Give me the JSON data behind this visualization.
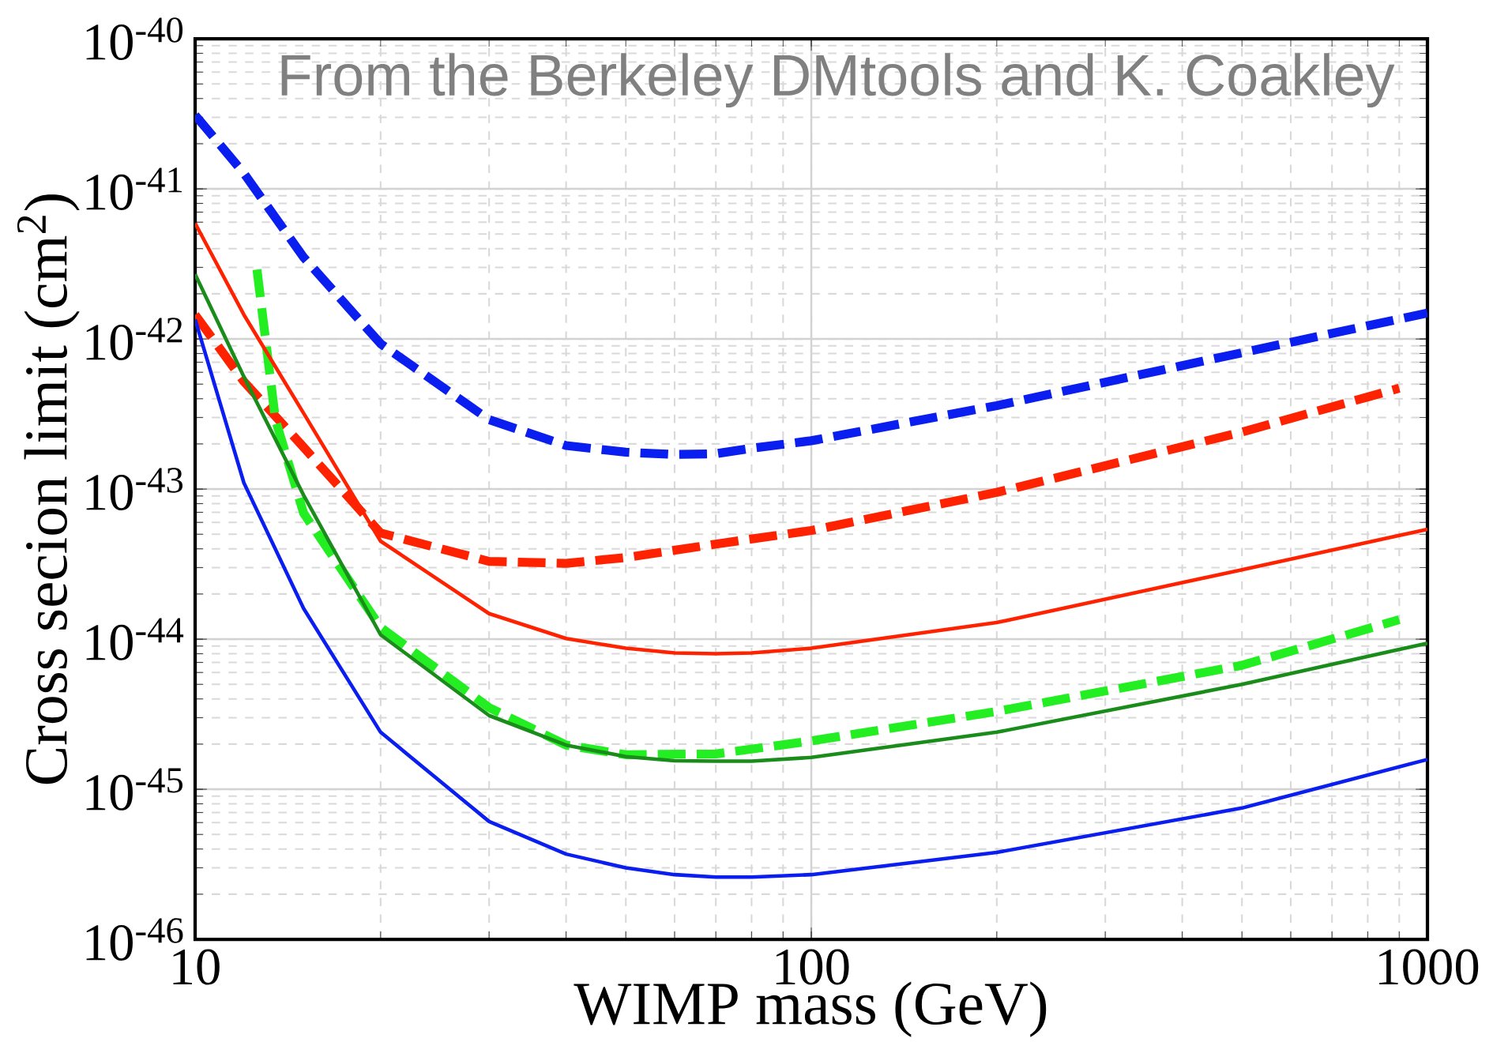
{
  "chart_data": {
    "type": "line",
    "xlabel": "WIMP mass (GeV)",
    "ylabel": "Cross secion limit (cm$^{2}$)",
    "annotations": [
      "From the Berkeley DMtools and K. Coakley"
    ],
    "log": "xy",
    "grid": true,
    "marker": "none",
    "xlim": [
      10,
      1000
    ],
    "xticks": [
      10,
      100,
      1000
    ],
    "ylim": [
      1e-46,
      1e-40
    ],
    "yticks": [
      {
        "value": 1e-46,
        "label": "10$^{-46}$"
      },
      {
        "value": 1e-45,
        "label": "10$^{-45}$"
      },
      {
        "value": 1e-44,
        "label": "10$^{-44}$"
      },
      {
        "value": 1e-43,
        "label": "10$^{-43}$"
      },
      {
        "value": 1e-42,
        "label": "10$^{-42}$"
      },
      {
        "value": 1e-41,
        "label": "10$^{-41}$"
      },
      {
        "value": 1e-40,
        "label": "10$^{-40}$"
      }
    ],
    "series": [
      {
        "color": "#0a1ef0",
        "line_style": "dashed",
        "x": [
          10,
          12,
          15,
          20,
          30,
          40,
          50,
          60,
          70,
          80,
          100,
          200,
          500,
          1000
        ],
        "values": [
          3.1e-41,
          1.27e-41,
          3.5e-42,
          9.3e-43,
          2.9e-43,
          1.95e-43,
          1.76e-43,
          1.7e-43,
          1.72e-43,
          1.87e-43,
          2.1e-43,
          3.6e-43,
          8.1e-43,
          1.49e-42
        ]
      },
      {
        "color": "#ff2200",
        "line_style": "dashed",
        "x": [
          10,
          12,
          15,
          20,
          30,
          40,
          50,
          70,
          100,
          200,
          500,
          900
        ],
        "values": [
          1.45e-42,
          5.2e-43,
          1.9e-43,
          5.1e-44,
          3.3e-44,
          3.2e-44,
          3.5e-44,
          4.3e-44,
          5.3e-44,
          9.5e-44,
          2.4e-43,
          4.7e-43
        ]
      },
      {
        "color": "#22ee22",
        "line_style": "dashed",
        "x": [
          12.6,
          13.5,
          15,
          20,
          30,
          40,
          50,
          70,
          100,
          200,
          500,
          900
        ],
        "values": [
          2.9e-42,
          2.9e-43,
          6.9e-44,
          1.2e-44,
          3.5e-45,
          1.97e-45,
          1.7e-45,
          1.72e-45,
          2.1e-45,
          3.3e-45,
          6.7e-45,
          1.35e-44
        ]
      },
      {
        "color": "#ff2200",
        "line_style": "solid",
        "x": [
          10,
          12,
          15,
          20,
          30,
          40,
          50,
          60,
          70,
          80,
          100,
          200,
          500,
          1000
        ],
        "values": [
          5.9e-42,
          1.45e-42,
          3.2e-43,
          4.5e-44,
          1.48e-44,
          1.01e-44,
          8.7e-45,
          8.1e-45,
          8e-45,
          8.1e-45,
          8.7e-45,
          1.29e-44,
          2.9e-44,
          5.4e-44
        ]
      },
      {
        "color": "#1a8c1a",
        "line_style": "solid",
        "x": [
          10,
          12,
          15,
          20,
          30,
          40,
          50,
          60,
          70,
          80,
          100,
          200,
          500,
          1000
        ],
        "values": [
          2.7e-42,
          5.6e-43,
          9.1e-44,
          1.07e-44,
          3.1e-45,
          1.97e-45,
          1.65e-45,
          1.55e-45,
          1.54e-45,
          1.54e-45,
          1.63e-45,
          2.4e-45,
          5e-45,
          9.4e-45
        ]
      },
      {
        "color": "#0a1ef0",
        "line_style": "solid",
        "x": [
          10,
          12,
          15,
          20,
          30,
          40,
          50,
          60,
          70,
          80,
          100,
          200,
          500,
          1000
        ],
        "values": [
          1.35e-42,
          1.1e-43,
          1.6e-44,
          2.4e-45,
          6.1e-46,
          3.7e-46,
          3e-46,
          2.7e-46,
          2.6e-46,
          2.6e-46,
          2.7e-46,
          3.8e-46,
          7.5e-46,
          1.58e-45
        ]
      }
    ]
  }
}
